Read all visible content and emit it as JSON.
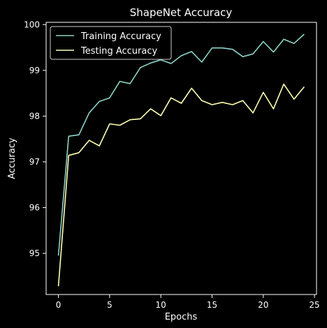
{
  "chart_data": {
    "type": "line",
    "title": "ShapeNet Accuracy",
    "xlabel": "Epochs",
    "ylabel": "Accuracy",
    "xlim": [
      -1.2,
      25.2
    ],
    "ylim": [
      94.1,
      100.05
    ],
    "xticks": [
      0,
      5,
      10,
      15,
      20,
      25
    ],
    "yticks": [
      95,
      96,
      97,
      98,
      99,
      100
    ],
    "grid": false,
    "legend_position": "top-left",
    "x": [
      0,
      1,
      2,
      3,
      4,
      5,
      6,
      7,
      8,
      9,
      10,
      11,
      12,
      13,
      14,
      15,
      16,
      17,
      18,
      19,
      20,
      21,
      22,
      23,
      24
    ],
    "series": [
      {
        "name": "Training Accuracy",
        "color": "#8dd3c7",
        "values": [
          94.95,
          97.56,
          97.59,
          98.07,
          98.32,
          98.4,
          98.76,
          98.71,
          99.06,
          99.16,
          99.23,
          99.15,
          99.32,
          99.41,
          99.18,
          99.49,
          99.49,
          99.46,
          99.3,
          99.36,
          99.63,
          99.4,
          99.68,
          99.59,
          99.79
        ]
      },
      {
        "name": "Testing Accuracy",
        "color": "#ffffb3",
        "values": [
          94.28,
          97.14,
          97.2,
          97.47,
          97.35,
          97.83,
          97.8,
          97.92,
          97.94,
          98.16,
          98.01,
          98.4,
          98.28,
          98.61,
          98.34,
          98.25,
          98.3,
          98.25,
          98.34,
          98.07,
          98.52,
          98.16,
          98.7,
          98.37,
          98.64
        ]
      }
    ]
  }
}
